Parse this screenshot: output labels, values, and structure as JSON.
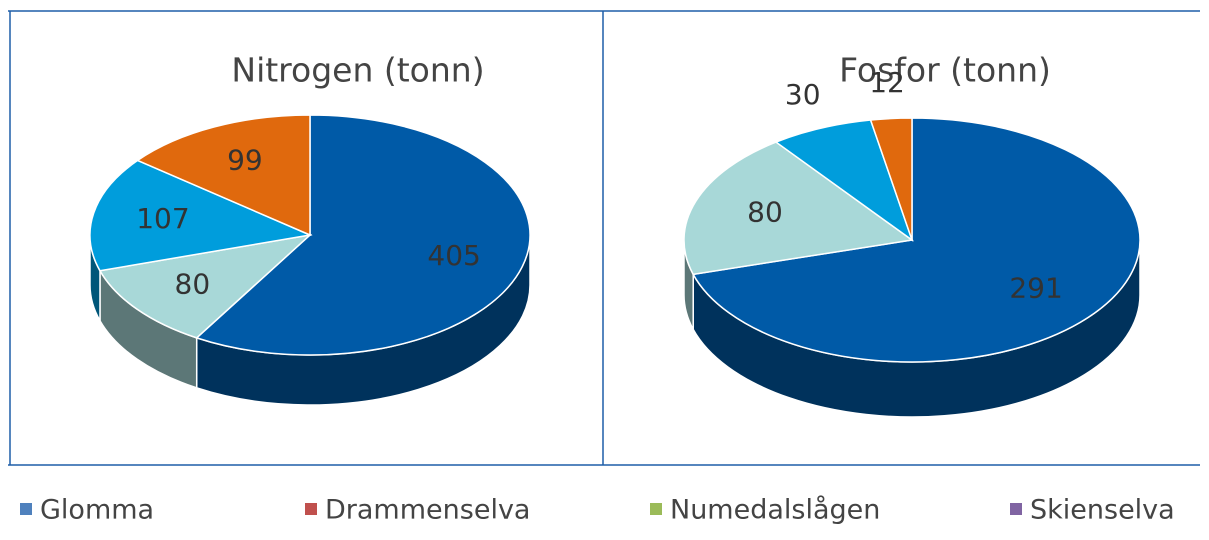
{
  "legend": {
    "labels": [
      "Glomma",
      "Drammenselva",
      "Numedalslågen",
      "Skienselva"
    ],
    "colors": [
      "#4f81bd",
      "#c0504d",
      "#9bbb59",
      "#8064a2"
    ]
  },
  "chart_data": [
    {
      "type": "pie",
      "title": "Nitrogen (tonn)",
      "values": [
        405,
        80,
        107,
        99
      ],
      "colors": [
        "#005aa7",
        "#a8d8d8",
        "#009ddc",
        "#e0690d"
      ]
    },
    {
      "type": "pie",
      "title": "Fosfor (tonn)",
      "values": [
        291,
        80,
        30,
        12
      ],
      "colors": [
        "#005aa7",
        "#a8d8d8",
        "#009ddc",
        "#e0690d"
      ]
    }
  ]
}
